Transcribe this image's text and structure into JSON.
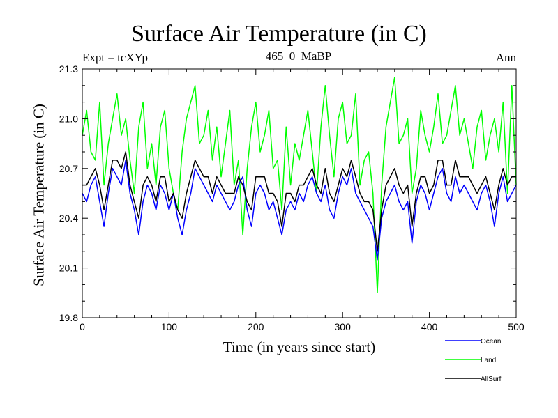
{
  "chart_data": {
    "type": "line",
    "title": "Surface Air Temperature (in C)",
    "subtitle": "465_0_MaBP",
    "experiment": "Expt = tcXYp",
    "period": "Ann",
    "xlabel": "Time (in years since start)",
    "ylabel": "Surface Air Temperature (in C)",
    "xlim": [
      0,
      500
    ],
    "ylim": [
      19.8,
      21.3
    ],
    "xticks": [
      "0",
      "100",
      "200",
      "300",
      "400",
      "500"
    ],
    "yticks": [
      "19.8",
      "20.1",
      "20.4",
      "20.7",
      "21.0",
      "21.3"
    ],
    "grid": false,
    "legend_position": "bottom-right, below plot",
    "series": [
      {
        "name": "Ocean",
        "color": "#0000ff",
        "x": [
          0,
          5,
          10,
          15,
          20,
          25,
          30,
          35,
          40,
          45,
          50,
          55,
          60,
          65,
          70,
          75,
          80,
          85,
          90,
          95,
          100,
          105,
          110,
          115,
          120,
          125,
          130,
          135,
          140,
          145,
          150,
          155,
          160,
          165,
          170,
          175,
          180,
          185,
          190,
          195,
          200,
          205,
          210,
          215,
          220,
          225,
          230,
          235,
          240,
          245,
          250,
          255,
          260,
          265,
          270,
          275,
          280,
          285,
          290,
          295,
          300,
          305,
          310,
          315,
          320,
          325,
          330,
          335,
          340,
          345,
          350,
          355,
          360,
          365,
          370,
          375,
          380,
          385,
          390,
          395,
          400,
          405,
          410,
          415,
          420,
          425,
          430,
          435,
          440,
          445,
          450,
          455,
          460,
          465,
          470,
          475,
          480,
          485,
          490,
          495,
          500
        ],
        "values": [
          20.55,
          20.5,
          20.6,
          20.65,
          20.5,
          20.35,
          20.55,
          20.7,
          20.65,
          20.6,
          20.75,
          20.55,
          20.45,
          20.3,
          20.5,
          20.6,
          20.55,
          20.45,
          20.6,
          20.55,
          20.45,
          20.55,
          20.4,
          20.3,
          20.45,
          20.55,
          20.7,
          20.65,
          20.6,
          20.55,
          20.5,
          20.6,
          20.55,
          20.5,
          20.45,
          20.5,
          20.6,
          20.65,
          20.45,
          20.35,
          20.55,
          20.6,
          20.55,
          20.45,
          20.5,
          20.4,
          20.3,
          20.45,
          20.5,
          20.45,
          20.55,
          20.5,
          20.6,
          20.65,
          20.55,
          20.5,
          20.6,
          20.45,
          20.4,
          20.55,
          20.65,
          20.6,
          20.7,
          20.55,
          20.5,
          20.45,
          20.4,
          20.35,
          20.15,
          20.4,
          20.5,
          20.55,
          20.6,
          20.5,
          20.45,
          20.5,
          20.25,
          20.5,
          20.6,
          20.55,
          20.45,
          20.55,
          20.65,
          20.7,
          20.55,
          20.5,
          20.65,
          20.55,
          20.6,
          20.55,
          20.5,
          20.45,
          20.55,
          20.6,
          20.5,
          20.35,
          20.55,
          20.65,
          20.5,
          20.55,
          20.6
        ]
      },
      {
        "name": "Land",
        "color": "#00ff00",
        "x": [
          0,
          5,
          10,
          15,
          20,
          25,
          30,
          35,
          40,
          45,
          50,
          55,
          60,
          65,
          70,
          75,
          80,
          85,
          90,
          95,
          100,
          105,
          110,
          115,
          120,
          125,
          130,
          135,
          140,
          145,
          150,
          155,
          160,
          165,
          170,
          175,
          180,
          185,
          190,
          195,
          200,
          205,
          210,
          215,
          220,
          225,
          230,
          235,
          240,
          245,
          250,
          255,
          260,
          265,
          270,
          275,
          280,
          285,
          290,
          295,
          300,
          305,
          310,
          315,
          320,
          325,
          330,
          335,
          340,
          345,
          350,
          355,
          360,
          365,
          370,
          375,
          380,
          385,
          390,
          395,
          400,
          405,
          410,
          415,
          420,
          425,
          430,
          435,
          440,
          445,
          450,
          455,
          460,
          465,
          470,
          475,
          480,
          485,
          490,
          495,
          500
        ],
        "values": [
          20.9,
          21.05,
          20.8,
          20.75,
          21.1,
          20.6,
          20.85,
          21.0,
          21.15,
          20.9,
          21.0,
          20.75,
          20.55,
          20.95,
          21.1,
          20.7,
          20.85,
          20.6,
          20.95,
          21.05,
          20.7,
          20.55,
          20.45,
          20.8,
          21.0,
          21.1,
          21.2,
          20.85,
          20.9,
          21.05,
          20.75,
          20.95,
          20.65,
          20.85,
          21.05,
          20.6,
          20.75,
          20.3,
          20.7,
          20.95,
          21.1,
          20.8,
          20.9,
          21.05,
          20.7,
          20.75,
          20.45,
          20.95,
          20.6,
          20.85,
          20.75,
          20.9,
          21.05,
          20.8,
          20.55,
          20.95,
          21.2,
          20.9,
          20.65,
          21.0,
          21.1,
          20.85,
          20.9,
          21.15,
          20.6,
          20.75,
          20.8,
          20.55,
          19.95,
          20.6,
          20.95,
          21.1,
          21.25,
          20.85,
          20.9,
          21.0,
          20.55,
          20.7,
          21.05,
          20.9,
          20.8,
          20.95,
          21.15,
          20.85,
          20.9,
          21.05,
          21.2,
          20.9,
          21.0,
          20.85,
          20.7,
          20.95,
          21.05,
          20.75,
          20.9,
          21.0,
          20.8,
          21.1,
          20.55,
          21.2,
          20.6
        ]
      },
      {
        "name": "AllSurf",
        "color": "#000000",
        "x": [
          0,
          5,
          10,
          15,
          20,
          25,
          30,
          35,
          40,
          45,
          50,
          55,
          60,
          65,
          70,
          75,
          80,
          85,
          90,
          95,
          100,
          105,
          110,
          115,
          120,
          125,
          130,
          135,
          140,
          145,
          150,
          155,
          160,
          165,
          170,
          175,
          180,
          185,
          190,
          195,
          200,
          205,
          210,
          215,
          220,
          225,
          230,
          235,
          240,
          245,
          250,
          255,
          260,
          265,
          270,
          275,
          280,
          285,
          290,
          295,
          300,
          305,
          310,
          315,
          320,
          325,
          330,
          335,
          340,
          345,
          350,
          355,
          360,
          365,
          370,
          375,
          380,
          385,
          390,
          395,
          400,
          405,
          410,
          415,
          420,
          425,
          430,
          435,
          440,
          445,
          450,
          455,
          460,
          465,
          470,
          475,
          480,
          485,
          490,
          495,
          500
        ],
        "values": [
          20.6,
          20.6,
          20.65,
          20.7,
          20.6,
          20.45,
          20.6,
          20.75,
          20.75,
          20.7,
          20.8,
          20.6,
          20.5,
          20.4,
          20.6,
          20.65,
          20.6,
          20.5,
          20.65,
          20.65,
          20.5,
          20.55,
          20.45,
          20.4,
          20.55,
          20.65,
          20.75,
          20.7,
          20.65,
          20.65,
          20.55,
          20.65,
          20.6,
          20.55,
          20.55,
          20.55,
          20.65,
          20.6,
          20.5,
          20.45,
          20.65,
          20.65,
          20.65,
          20.55,
          20.55,
          20.5,
          20.35,
          20.55,
          20.55,
          20.5,
          20.6,
          20.6,
          20.65,
          20.7,
          20.6,
          20.55,
          20.7,
          20.55,
          20.5,
          20.6,
          20.7,
          20.65,
          20.75,
          20.65,
          20.55,
          20.5,
          20.5,
          20.45,
          20.2,
          20.45,
          20.6,
          20.65,
          20.7,
          20.6,
          20.55,
          20.6,
          20.35,
          20.55,
          20.65,
          20.65,
          20.55,
          20.6,
          20.75,
          20.75,
          20.6,
          20.6,
          20.75,
          20.65,
          20.65,
          20.65,
          20.6,
          20.55,
          20.6,
          20.65,
          20.55,
          20.45,
          20.6,
          20.7,
          20.6,
          20.65,
          20.65
        ]
      }
    ]
  }
}
